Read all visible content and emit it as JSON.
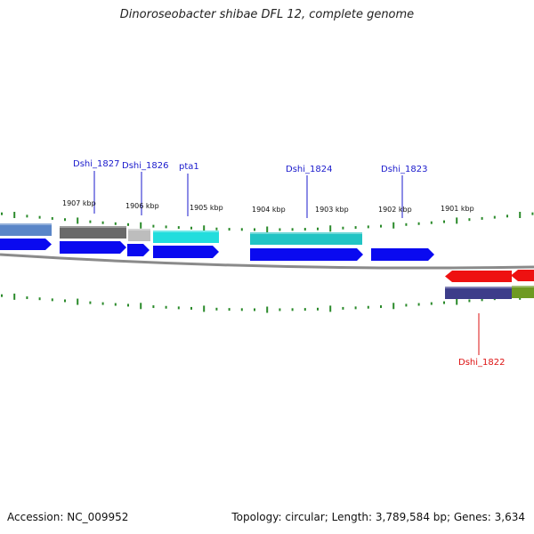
{
  "title": "Dinoroseobacter shibae DFL 12, complete genome",
  "footer": {
    "accession": "Accession: NC_009952",
    "summary": "Topology: circular; Length: 3,789,584 bp; Genes: 3,634"
  },
  "colors": {
    "tick": "#2a8a2a",
    "backbone": "#8a8a8a",
    "label_blue": "#1a1acc",
    "label_red": "#dd1111",
    "cds_blue": "#0a0af0",
    "dark_gray": "#6a6a6a",
    "light_gray": "#bdbdbd",
    "cyan": "#22dddd",
    "teal": "#22c4c4",
    "steel_blue": "#5a86c8",
    "red": "#ee1111",
    "navy": "#3d3d8a",
    "olive": "#6e9a22"
  },
  "ruler_labels": [
    "1907 kbp",
    "1906 kbp",
    "1905 kbp",
    "1904 kbp",
    "1903 kbp",
    "1902 kbp",
    "1901 kbp"
  ],
  "gene_labels": [
    {
      "text": "Dshi_1827",
      "color": "label_blue"
    },
    {
      "text": "Dshi_1826",
      "color": "label_blue"
    },
    {
      "text": "pta1",
      "color": "label_blue"
    },
    {
      "text": "Dshi_1824",
      "color": "label_blue"
    },
    {
      "text": "Dshi_1823",
      "color": "label_blue"
    },
    {
      "text": "Dshi_1822",
      "color": "label_red"
    }
  ]
}
